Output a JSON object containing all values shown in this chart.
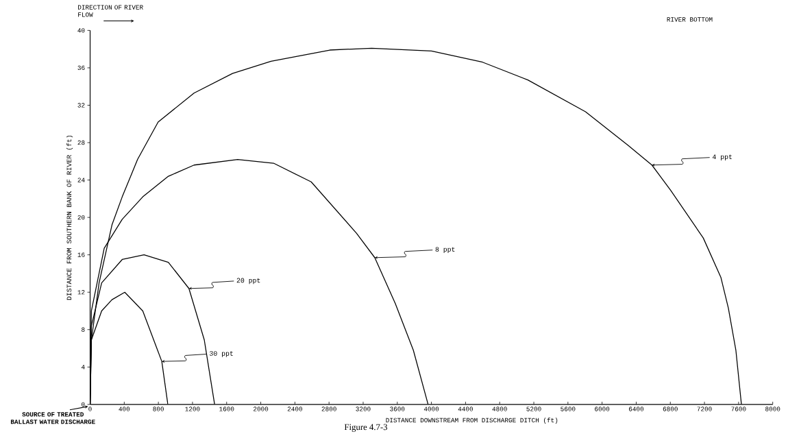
{
  "chart_data": {
    "type": "line",
    "xlabel": "DISTANCE DOWNSTREAM FROM DISCHARGE DITCH (ft)",
    "ylabel": "DISTANCE FROM SOUTHERN BANK OF RIVER (ft)",
    "xlim": [
      0,
      8000
    ],
    "ylim": [
      0,
      40
    ],
    "xticks": [
      0,
      400,
      800,
      1200,
      1600,
      2000,
      2400,
      2800,
      3200,
      3600,
      4000,
      4400,
      4800,
      5200,
      5600,
      6000,
      6400,
      6800,
      7200,
      7600,
      8000
    ],
    "yticks": [
      0,
      4,
      8,
      12,
      16,
      20,
      24,
      28,
      32,
      36,
      40
    ],
    "grid": false,
    "marker": "none",
    "line_style": "solid",
    "series": [
      {
        "name": "4 ppt",
        "color": "#000000",
        "x": [
          0,
          15,
          105,
          256,
          376,
          556,
          797,
          1218,
          1669,
          2120,
          2809,
          3300,
          4000,
          4600,
          5130,
          5806,
          6305,
          6584,
          6804,
          7186,
          7392,
          7480,
          7568,
          7633
        ],
        "values": [
          0,
          6.9,
          13.0,
          19.2,
          22.2,
          26.2,
          30.2,
          33.3,
          35.4,
          36.7,
          37.9,
          38.1,
          37.8,
          36.6,
          34.7,
          31.3,
          27.7,
          25.6,
          22.9,
          17.8,
          13.6,
          10.3,
          5.8,
          0
        ]
      },
      {
        "name": "8 ppt",
        "color": "#000000",
        "x": [
          0,
          15,
          165,
          376,
          617,
          917,
          1218,
          1729,
          2150,
          2591,
          3123,
          3336,
          3576,
          3788,
          3961
        ],
        "values": [
          0,
          10.0,
          16.7,
          19.8,
          22.2,
          24.4,
          25.6,
          26.2,
          25.8,
          23.8,
          18.3,
          15.7,
          10.8,
          5.8,
          0
        ]
      },
      {
        "name": "20 ppt",
        "color": "#000000",
        "x": [
          0,
          15,
          135,
          376,
          632,
          917,
          1158,
          1338,
          1459
        ],
        "values": [
          0,
          8.4,
          13.0,
          15.5,
          16.0,
          15.2,
          12.4,
          6.9,
          0
        ]
      },
      {
        "name": "30 ppt",
        "color": "#000000",
        "x": [
          0,
          15,
          135,
          256,
          406,
          617,
          840,
          911
        ],
        "values": [
          0,
          6.9,
          10.0,
          11.2,
          12.0,
          10.0,
          4.6,
          0
        ]
      }
    ],
    "annotations": [
      "DIRECTION OF RIVER FLOW",
      "RIVER BOTTOM",
      {
        "text": "SOURCE OF TREATED BALLAST WATER DISCHARGE",
        "x": 0,
        "y": 0
      },
      "Figure 4.7-3"
    ]
  }
}
